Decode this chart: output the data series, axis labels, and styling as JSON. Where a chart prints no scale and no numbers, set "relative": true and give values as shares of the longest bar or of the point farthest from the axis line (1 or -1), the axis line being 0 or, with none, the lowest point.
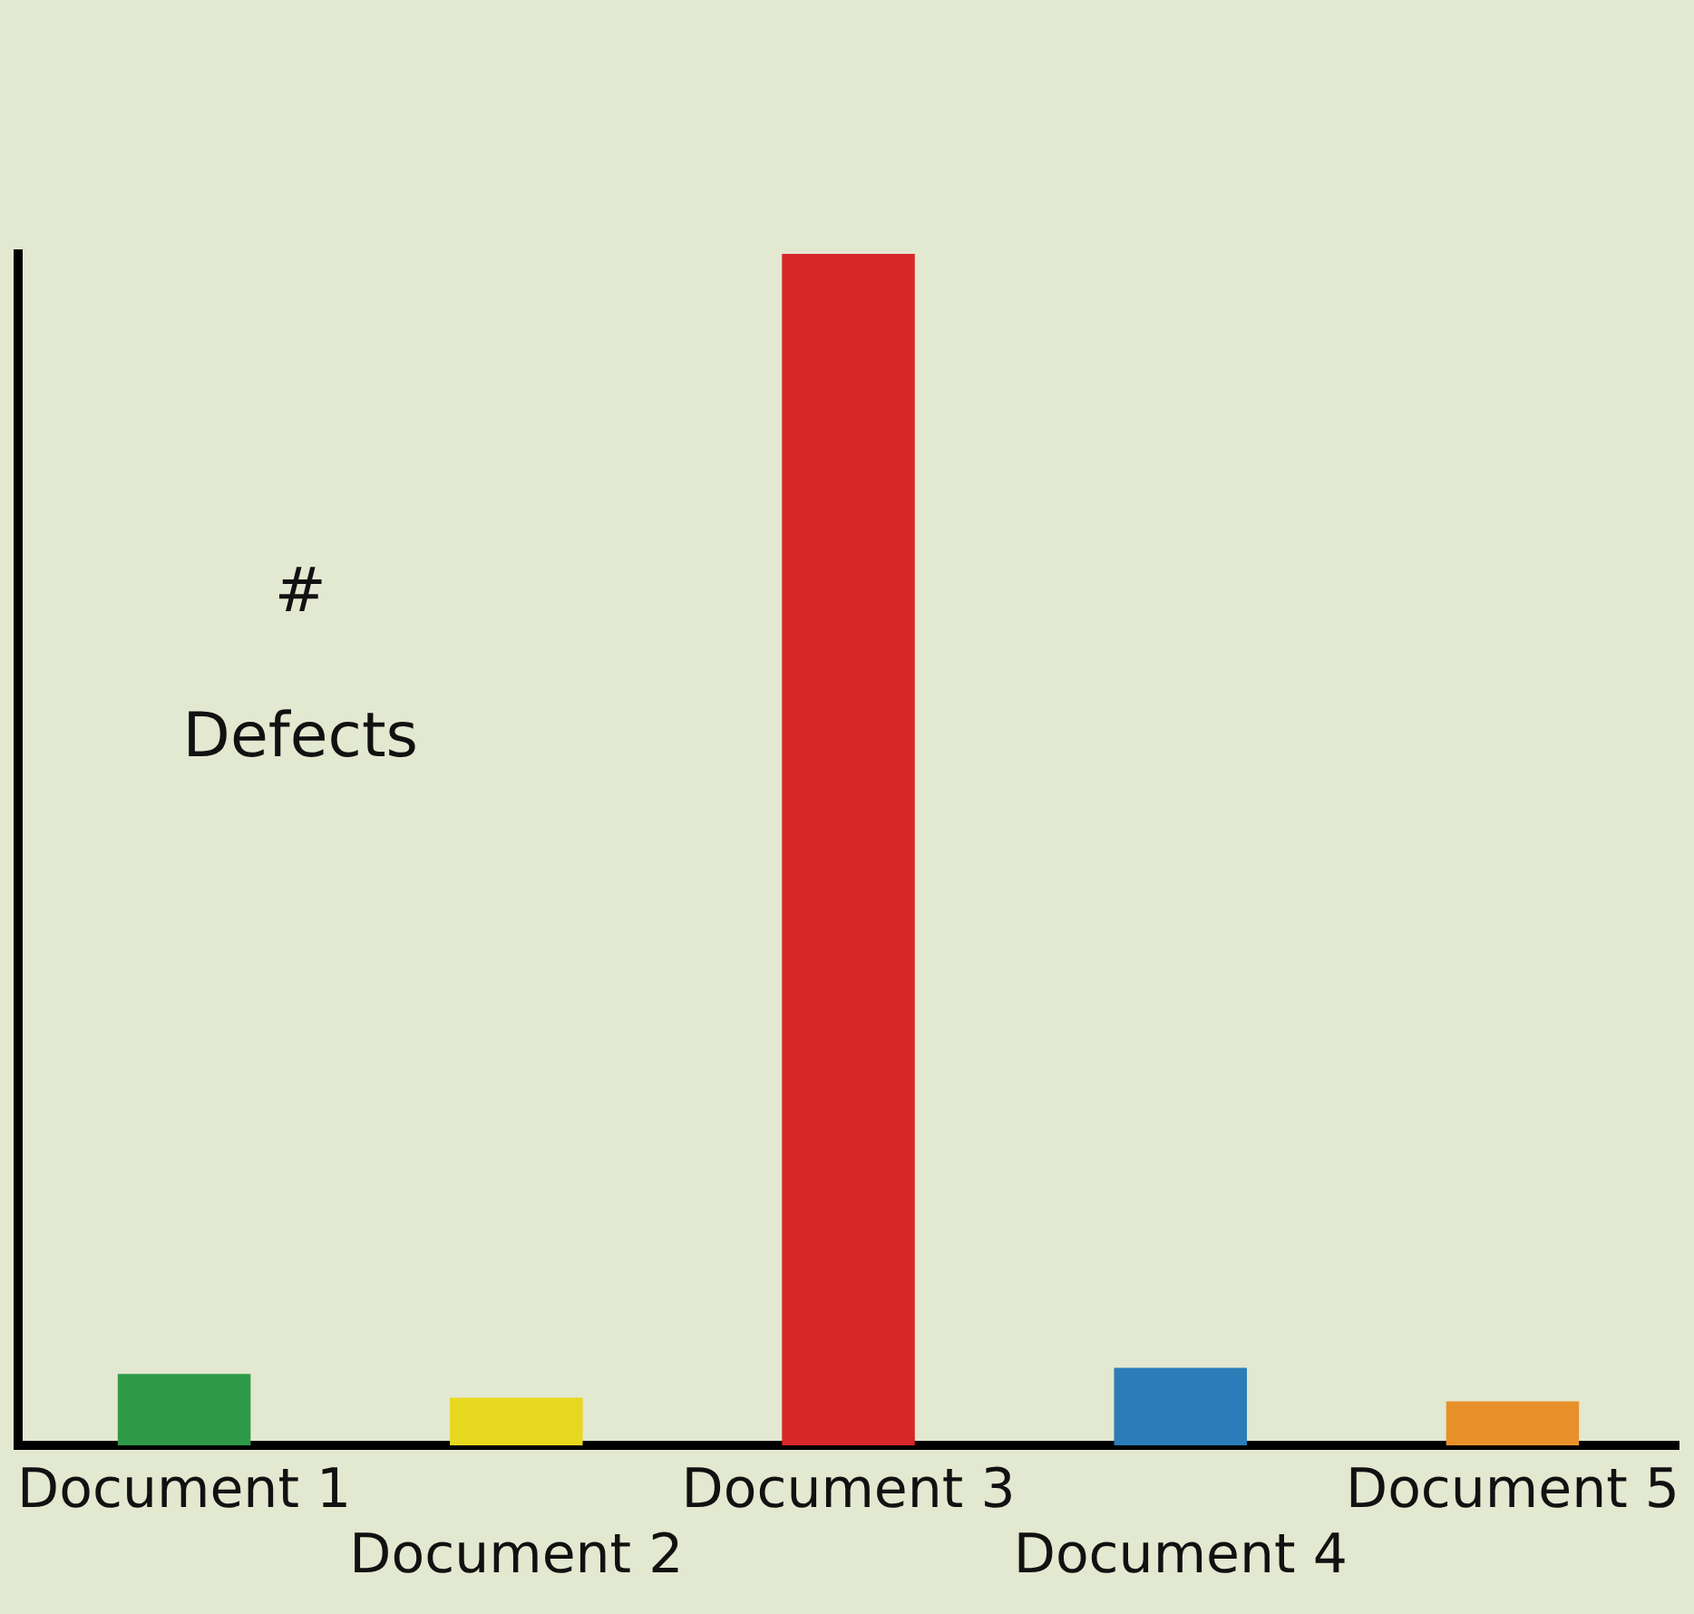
{
  "chart_data": {
    "type": "bar",
    "ylabel": "# Defects",
    "relative": true,
    "grid": false,
    "legend": false,
    "categories": [
      "Document 1",
      "Document 2",
      "Document 3",
      "Document 4",
      "Document 5"
    ],
    "values": [
      0.06,
      0.04,
      1,
      0.065,
      0.037
    ],
    "colors": [
      "#2e9a48",
      "#e6d81e",
      "#d62828",
      "#2a7db8",
      "#e8912a"
    ]
  }
}
